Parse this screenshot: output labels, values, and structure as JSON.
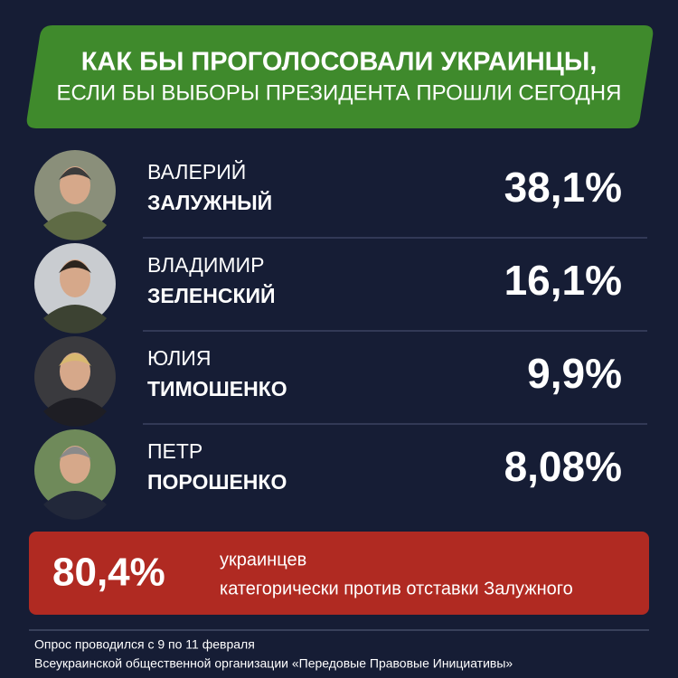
{
  "header": {
    "title_line1": "КАК БЫ ПРОГОЛОСОВАЛИ УКРАИНЦЫ,",
    "title_line2": "ЕСЛИ БЫ ВЫБОРЫ ПРЕЗИДЕНТА ПРОШЛИ СЕГОДНЯ"
  },
  "candidates": [
    {
      "first_name": "ВАЛЕРИЙ",
      "last_name": "ЗАЛУЖНЫЙ",
      "percent": "38,1%"
    },
    {
      "first_name": "ВЛАДИМИР",
      "last_name": "ЗЕЛЕНСКИЙ",
      "percent": "16,1%"
    },
    {
      "first_name": "ЮЛИЯ",
      "last_name": "ТИМОШЕНКО",
      "percent": "9,9%"
    },
    {
      "first_name": "ПЕТР",
      "last_name": "ПОРОШЕНКО",
      "percent": "8,08%"
    }
  ],
  "highlight": {
    "value": "80,4%",
    "line1": "украинцев",
    "line2": "категорически против отставки Залужного"
  },
  "footer": {
    "line1": "Опрос проводился с 9 по 11 февраля",
    "line2": "Всеукраинской общественной организации «Передовые Правовые Инициативы»"
  }
}
